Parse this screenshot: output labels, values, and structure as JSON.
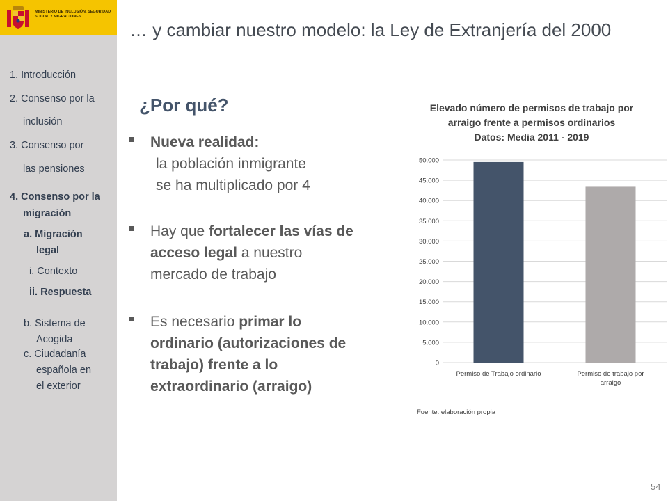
{
  "logo": {
    "ministry_text": "MINISTERIO DE INCLUSIÓN, SEGURIDAD SOCIAL Y MIGRACIONES"
  },
  "sidebar": {
    "items": [
      {
        "label": "1. Introducción"
      },
      {
        "label": "2. Consenso por la"
      },
      {
        "label": "inclusión"
      },
      {
        "label": "3. Consenso por"
      },
      {
        "label": "las pensiones"
      },
      {
        "label": "4. Consenso por la"
      },
      {
        "label": "migración"
      },
      {
        "label": "a. Migración"
      },
      {
        "label": "legal"
      },
      {
        "label": "i.  Contexto"
      },
      {
        "label": "ii. Respuesta"
      },
      {
        "label": "b. Sistema de"
      },
      {
        "label": "Acogida"
      },
      {
        "label": "c.  Ciudadanía"
      },
      {
        "label": "española en"
      },
      {
        "label": "el exterior"
      }
    ]
  },
  "slide": {
    "title": "… y cambiar nuestro modelo: la Ley de Extranjería del 2000",
    "subtitle": "¿Por qué?",
    "bullet1": {
      "heading": "Nueva realidad:",
      "line2": "la población inmigrante",
      "line3": "se ha multiplicado por 4"
    },
    "bullet2": {
      "pre": "Hay que ",
      "bold": "fortalecer las vías de acceso legal",
      "post": " a nuestro mercado de trabajo"
    },
    "bullet3": {
      "pre": "Es necesario ",
      "bold": "primar lo ordinario (autorizaciones de trabajo) frente a lo extraordinario (arraigo)"
    },
    "page_number": "54"
  },
  "chart_data": {
    "type": "bar",
    "title_lines": [
      "Elevado número de permisos de trabajo por",
      "arraigo frente a permisos ordinarios",
      "Datos: Media 2011 - 2019"
    ],
    "categories": [
      "Permiso de Trabajo ordinario",
      "Permiso de trabajo por arraigo"
    ],
    "category_label_lines": [
      [
        "Permiso de Trabajo ordinario"
      ],
      [
        "Permiso de trabajo por",
        "arraigo"
      ]
    ],
    "values": [
      49500,
      43400
    ],
    "colors": [
      "#44546a",
      "#aeaaaa"
    ],
    "ylim": [
      0,
      50000
    ],
    "y_ticks": [
      0,
      5000,
      10000,
      15000,
      20000,
      25000,
      30000,
      35000,
      40000,
      45000,
      50000
    ],
    "y_tick_labels": [
      "0",
      "5.000",
      "10.000",
      "15.000",
      "20.000",
      "25.000",
      "30.000",
      "35.000",
      "40.000",
      "45.000",
      "50.000"
    ],
    "grid": true,
    "source": "Fuente: elaboración propia"
  }
}
